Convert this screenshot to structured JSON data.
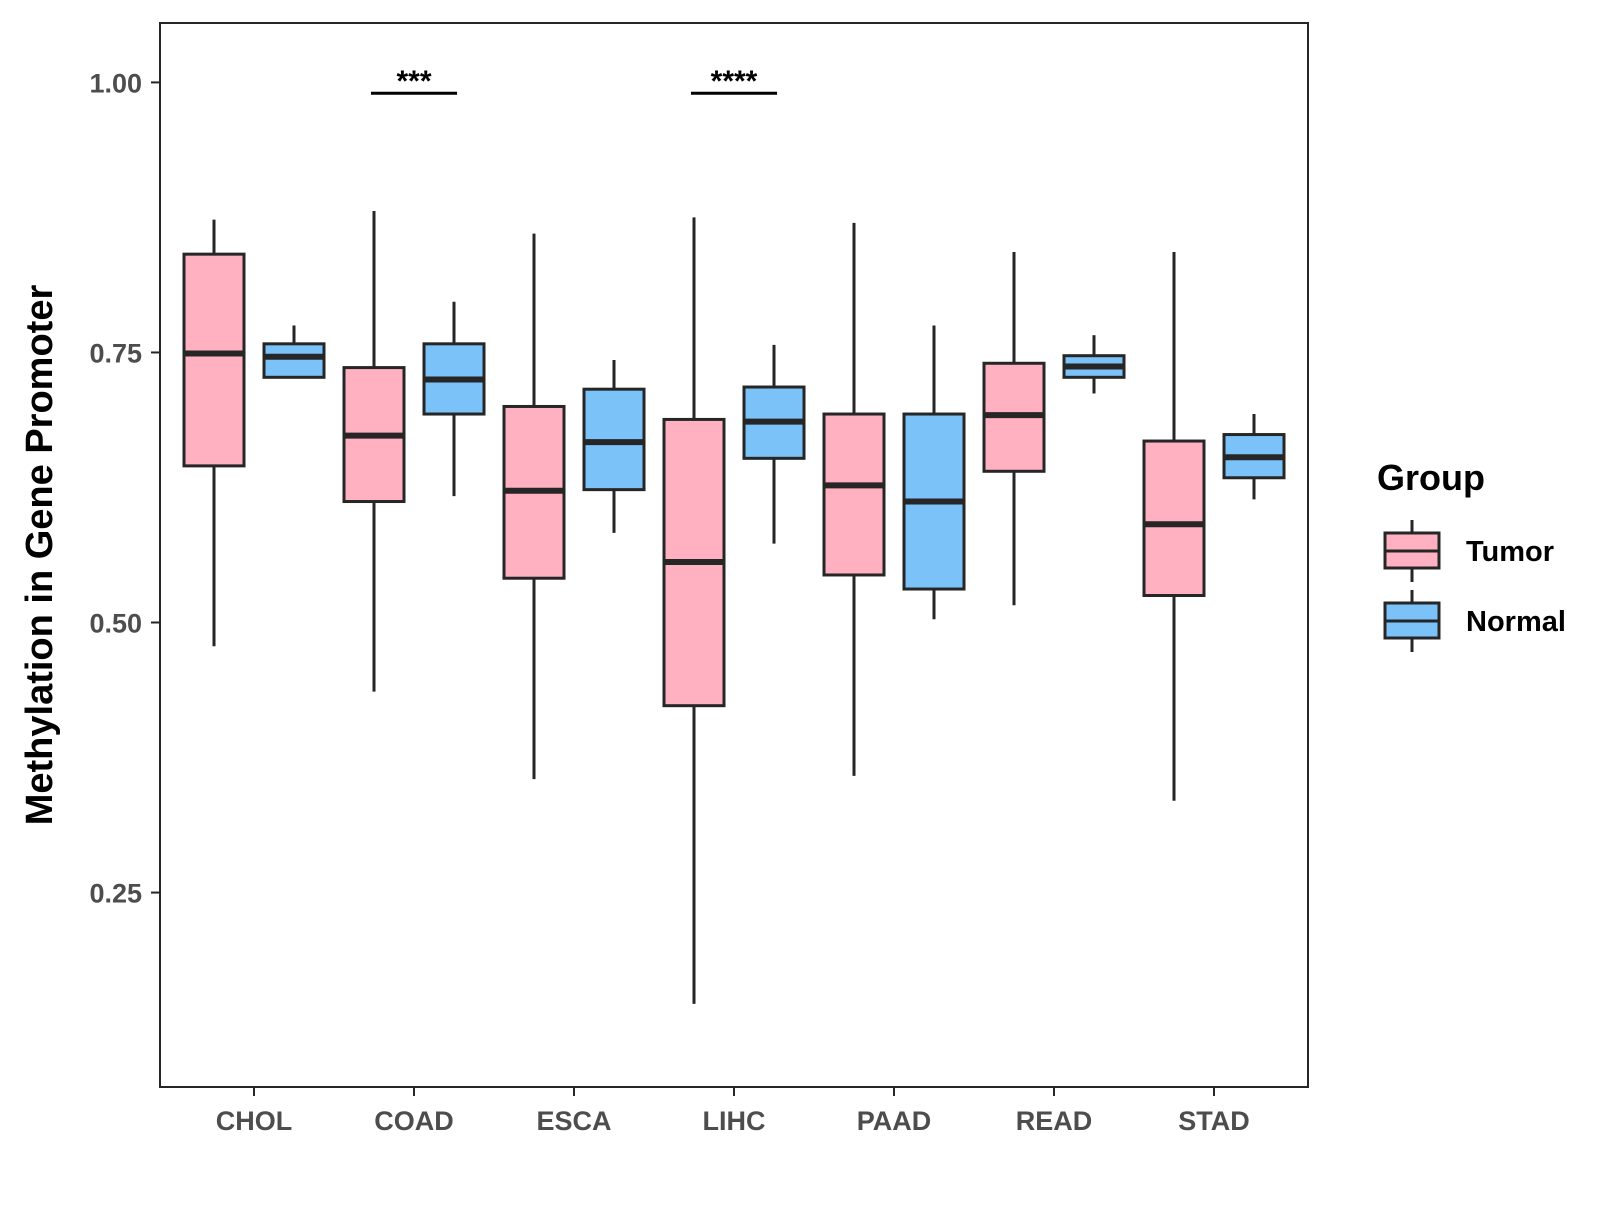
{
  "chart_data": {
    "type": "boxplot",
    "title": "",
    "xlabel": "",
    "ylabel": "Methylation in Gene Promoter",
    "ylim": [
      0.07,
      1.055
    ],
    "yticks": [
      0.25,
      0.5,
      0.75,
      1.0
    ],
    "ytick_labels": [
      "0.25",
      "0.50",
      "0.75",
      "1.00"
    ],
    "grid": false,
    "categories": [
      "CHOL",
      "COAD",
      "ESCA",
      "LIHC",
      "PAAD",
      "READ",
      "STAD"
    ],
    "legend": {
      "title": "Group",
      "position": "right",
      "entries": [
        "Tumor",
        "Normal"
      ]
    },
    "colors": {
      "Tumor": "#FFB0C1",
      "Normal": "#7AC2F8",
      "outline": "#262626"
    },
    "series": [
      {
        "name": "Tumor",
        "boxes": [
          {
            "whisker_low": 0.478,
            "q1": 0.645,
            "median": 0.749,
            "q3": 0.841,
            "whisker_high": 0.873
          },
          {
            "whisker_low": 0.436,
            "q1": 0.612,
            "median": 0.673,
            "q3": 0.736,
            "whisker_high": 0.881
          },
          {
            "whisker_low": 0.355,
            "q1": 0.541,
            "median": 0.622,
            "q3": 0.7,
            "whisker_high": 0.86
          },
          {
            "whisker_low": 0.147,
            "q1": 0.423,
            "median": 0.556,
            "q3": 0.688,
            "whisker_high": 0.875
          },
          {
            "whisker_low": 0.358,
            "q1": 0.544,
            "median": 0.627,
            "q3": 0.693,
            "whisker_high": 0.87
          },
          {
            "whisker_low": 0.516,
            "q1": 0.64,
            "median": 0.692,
            "q3": 0.74,
            "whisker_high": 0.843
          },
          {
            "whisker_low": 0.335,
            "q1": 0.525,
            "median": 0.591,
            "q3": 0.668,
            "whisker_high": 0.843
          }
        ]
      },
      {
        "name": "Normal",
        "boxes": [
          {
            "whisker_low": 0.727,
            "q1": 0.727,
            "median": 0.746,
            "q3": 0.758,
            "whisker_high": 0.775
          },
          {
            "whisker_low": 0.617,
            "q1": 0.693,
            "median": 0.725,
            "q3": 0.758,
            "whisker_high": 0.797
          },
          {
            "whisker_low": 0.583,
            "q1": 0.623,
            "median": 0.667,
            "q3": 0.716,
            "whisker_high": 0.743
          },
          {
            "whisker_low": 0.573,
            "q1": 0.652,
            "median": 0.686,
            "q3": 0.718,
            "whisker_high": 0.757
          },
          {
            "whisker_low": 0.503,
            "q1": 0.531,
            "median": 0.612,
            "q3": 0.693,
            "whisker_high": 0.775
          },
          {
            "whisker_low": 0.712,
            "q1": 0.727,
            "median": 0.737,
            "q3": 0.747,
            "whisker_high": 0.766
          },
          {
            "whisker_low": 0.614,
            "q1": 0.634,
            "median": 0.653,
            "q3": 0.674,
            "whisker_high": 0.693
          }
        ]
      }
    ],
    "annotations": [
      {
        "category": "COAD",
        "label": "***",
        "y": 0.99
      },
      {
        "category": "LIHC",
        "label": "****",
        "y": 0.99
      }
    ]
  }
}
